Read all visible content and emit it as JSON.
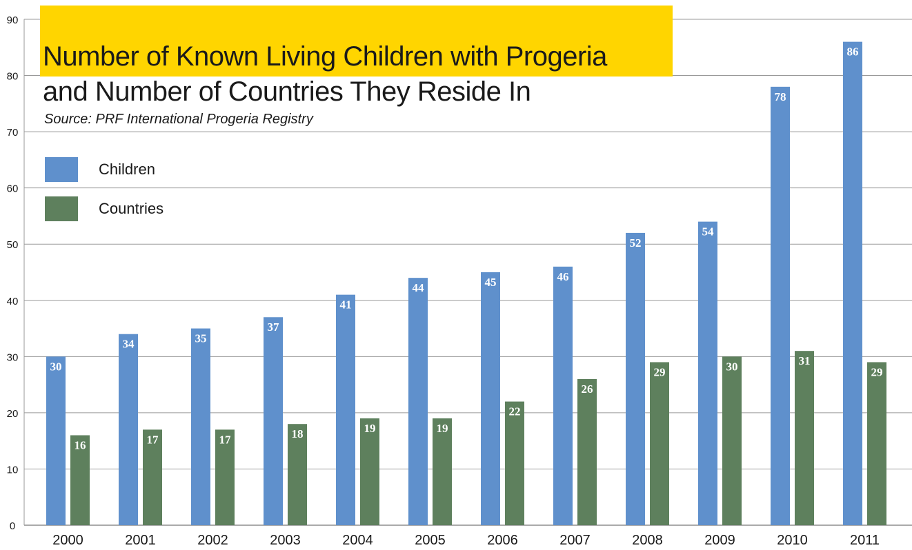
{
  "chart_data": {
    "type": "bar",
    "title": "Number of Known Living Children with Progeria",
    "title_line2": "and Number of Countries They Reside In",
    "subtitle": "Source: PRF International Progeria Registry",
    "categories": [
      "2000",
      "2001",
      "2002",
      "2003",
      "2004",
      "2005",
      "2006",
      "2007",
      "2008",
      "2009",
      "2010",
      "2011"
    ],
    "series": [
      {
        "name": "Children",
        "color": "#5F90CC",
        "values": [
          30,
          34,
          35,
          37,
          41,
          44,
          45,
          46,
          52,
          54,
          78,
          86
        ]
      },
      {
        "name": "Countries",
        "color": "#5E805D",
        "values": [
          16,
          17,
          17,
          18,
          19,
          19,
          22,
          26,
          29,
          30,
          31,
          29
        ]
      }
    ],
    "ylim": [
      0,
      90
    ],
    "yticks": [
      0,
      10,
      20,
      30,
      40,
      50,
      60,
      70,
      80,
      90
    ],
    "xlabel": "",
    "ylabel": "",
    "grid": true,
    "data_labels": true,
    "legend_position": "top-left",
    "title_highlight_color": "#FFD500"
  }
}
